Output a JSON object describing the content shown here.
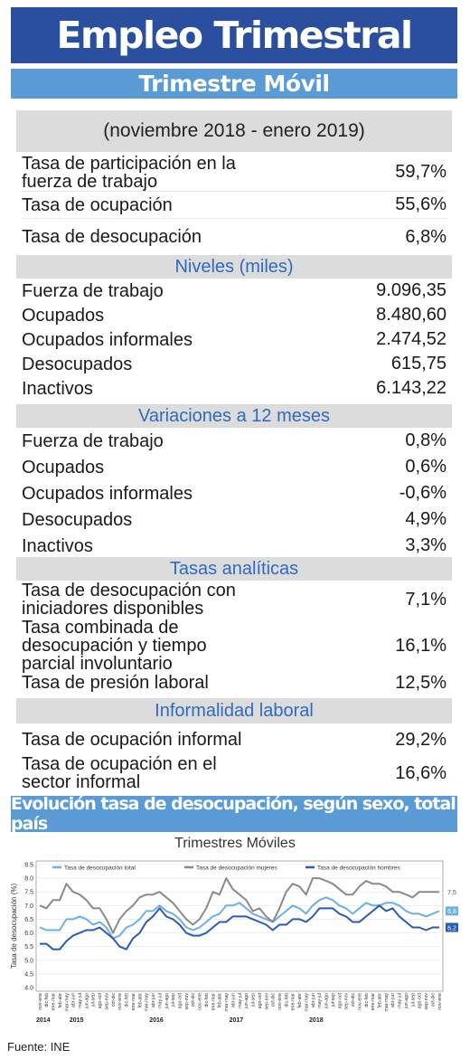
{
  "header": {
    "title": "Empleo Trimestral",
    "subtitle": "Trimestre Móvil"
  },
  "period": "(noviembre 2018 - enero 2019)",
  "summary": [
    {
      "label": "Tasa de participación en la fuerza de trabajo",
      "value": "59,7%"
    },
    {
      "label": "Tasa de ocupación",
      "value": "55,6%"
    },
    {
      "label": "Tasa de desocupación",
      "value": "6,8%"
    }
  ],
  "sections": {
    "niveles": {
      "title": "Niveles (miles)",
      "rows": [
        {
          "label": "Fuerza de trabajo",
          "value": "9.096,35"
        },
        {
          "label": "Ocupados",
          "value": "8.480,60"
        },
        {
          "label": "Ocupados informales",
          "value": "2.474,52"
        },
        {
          "label": "Desocupados",
          "value": "615,75"
        },
        {
          "label": "Inactivos",
          "value": "6.143,22"
        }
      ]
    },
    "variaciones": {
      "title": "Variaciones a 12 meses",
      "rows": [
        {
          "label": "Fuerza de trabajo",
          "value": "0,8%"
        },
        {
          "label": "Ocupados",
          "value": "0,6%"
        },
        {
          "label": "Ocupados informales",
          "value": "-0,6%"
        },
        {
          "label": "Desocupados",
          "value": "4,9%"
        },
        {
          "label": "Inactivos",
          "value": "3,3%"
        }
      ]
    },
    "tasas": {
      "title": "Tasas analíticas",
      "rows": [
        {
          "label": "Tasa de desocupación con iniciadores disponibles",
          "value": "7,1%"
        },
        {
          "label": "Tasa combinada de desocupación y tiempo parcial involuntario",
          "value": "16,1%"
        },
        {
          "label": "Tasa de presión laboral",
          "value": "12,5%"
        }
      ]
    },
    "informalidad": {
      "title": "Informalidad laboral",
      "rows": [
        {
          "label": "Tasa de ocupación informal",
          "value": "29,2%"
        },
        {
          "label": "Tasa de ocupación en el sector informal",
          "value": "16,6%"
        }
      ]
    }
  },
  "chart_title": "Evolución tasa de desocupación, según sexo, total país",
  "chart_subtitle": "Trimestres Móviles",
  "source": "Fuente: INE",
  "colors": {
    "title_bg": "#2a4f9e",
    "accent": "#5b9bd5",
    "section_text": "#2f6bbd",
    "section_bg": "#dcdcdd"
  },
  "chart_data": {
    "type": "line",
    "ylabel": "Tasa de desocupación (%)",
    "ylim": [
      4.0,
      8.5
    ],
    "yticks": [
      "4.0",
      "4.5",
      "5.0",
      "5.5",
      "6.0",
      "6.5",
      "7.0",
      "7.5",
      "8.0",
      "8.5"
    ],
    "x": [
      "nov-ene",
      "dic-feb",
      "ene-mar",
      "feb-abr",
      "mar-may",
      "abr-jun",
      "may-jul",
      "jun-ago",
      "jul-sep",
      "ago-oct",
      "sep-nov",
      "oct-dic",
      "nov-ene",
      "dic-feb",
      "ene-mar",
      "feb-abr",
      "mar-may",
      "abr-jun",
      "may-jul",
      "jun-ago",
      "jul-sep",
      "ago-oct",
      "sep-nov",
      "oct-dic",
      "nov-ene",
      "dic-feb",
      "ene-mar",
      "feb-abr",
      "mar-may",
      "abr-jun",
      "may-jul",
      "jun-ago",
      "jul-sep",
      "ago-oct",
      "sep-nov",
      "oct-dic",
      "nov-ene",
      "dic-feb",
      "ene-mar",
      "feb-abr",
      "mar-may",
      "abr-jun",
      "may-jul",
      "jun-ago",
      "jul-sep",
      "ago-oct",
      "sep-nov",
      "oct-dic",
      "nov-ene",
      "dic-feb",
      "ene-mar",
      "feb-abr",
      "mar-may",
      "abr-jun",
      "may-jul",
      "jun-ago",
      "jul-sep",
      "ago-oct",
      "sep-nov",
      "oct-dic",
      "nov-ene"
    ],
    "year_labels": [
      {
        "label": "2014",
        "index": 0
      },
      {
        "label": "2015",
        "index": 5
      },
      {
        "label": "2016",
        "index": 17
      },
      {
        "label": "2017",
        "index": 29
      },
      {
        "label": "2018",
        "index": 41
      }
    ],
    "series": [
      {
        "name": "Tasa de desocupación total",
        "color": "#6ab0e2",
        "end_label": "6,8",
        "values": [
          6.2,
          6.1,
          6.1,
          6.1,
          6.5,
          6.5,
          6.6,
          6.5,
          6.3,
          6.4,
          6.2,
          5.8,
          5.9,
          6.2,
          6.3,
          6.5,
          6.8,
          6.8,
          7.0,
          6.8,
          6.7,
          6.5,
          6.2,
          6.1,
          6.2,
          6.4,
          6.6,
          6.7,
          7.0,
          7.0,
          7.1,
          6.9,
          6.7,
          6.6,
          6.5,
          6.4,
          6.6,
          6.8,
          7.0,
          6.9,
          6.7,
          7.0,
          7.2,
          7.3,
          7.2,
          7.0,
          6.9,
          6.7,
          6.9,
          7.1,
          7.0,
          7.0,
          7.1,
          7.1,
          7.0,
          6.8,
          6.7,
          6.7,
          6.6,
          6.7,
          6.8
        ]
      },
      {
        "name": "Tasa de desocupación mujeres",
        "color": "#8a8a8a",
        "end_label": "7,5",
        "values": [
          7.0,
          6.9,
          7.2,
          7.2,
          7.8,
          7.5,
          7.4,
          7.2,
          6.9,
          6.9,
          6.5,
          6.0,
          6.5,
          6.8,
          7.0,
          7.3,
          7.4,
          7.4,
          7.5,
          7.3,
          7.1,
          6.8,
          6.5,
          6.3,
          6.5,
          6.9,
          7.5,
          7.4,
          8.0,
          7.6,
          7.4,
          7.2,
          6.8,
          6.9,
          6.6,
          6.4,
          6.9,
          7.5,
          7.8,
          7.7,
          7.4,
          8.0,
          8.0,
          7.9,
          7.8,
          7.6,
          7.4,
          7.4,
          7.7,
          7.9,
          7.8,
          7.8,
          7.7,
          7.5,
          7.5,
          7.4,
          7.3,
          7.5,
          7.5,
          7.5,
          7.5
        ]
      },
      {
        "name": "Tasa de desocupación hombres",
        "color": "#2a5bb0",
        "end_label": "6,2",
        "values": [
          5.6,
          5.6,
          5.4,
          5.4,
          5.7,
          5.9,
          6.0,
          6.1,
          6.1,
          6.2,
          6.0,
          5.8,
          5.5,
          5.4,
          5.8,
          6.0,
          6.4,
          6.6,
          6.9,
          6.6,
          6.5,
          6.3,
          6.0,
          5.9,
          5.9,
          6.0,
          6.2,
          6.4,
          6.4,
          6.6,
          6.6,
          6.6,
          6.5,
          6.4,
          6.3,
          6.1,
          6.3,
          6.3,
          6.5,
          6.5,
          6.4,
          6.6,
          6.9,
          6.9,
          6.9,
          6.7,
          6.6,
          6.4,
          6.4,
          6.6,
          6.8,
          7.0,
          6.8,
          6.9,
          6.6,
          6.4,
          6.2,
          6.2,
          6.1,
          6.2,
          6.2
        ]
      }
    ]
  }
}
